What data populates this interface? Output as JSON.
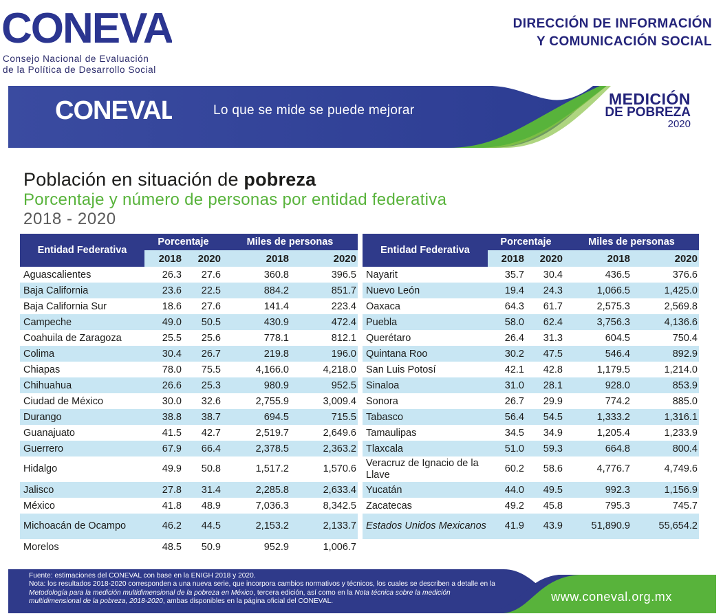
{
  "header": {
    "logo_text": "CONEVAL",
    "org_line1": "Consejo Nacional de Evaluación",
    "org_line2": "de la Política de Desarrollo Social",
    "dir_line1": "DIRECCIÓN DE INFORMACIÓN",
    "dir_line2": "Y COMUNICACIÓN SOCIAL"
  },
  "banner": {
    "logo_text": "CONEVAL",
    "slogan": "Lo que se mide se puede mejorar",
    "medicion_1": "MEDICIÓN",
    "medicion_2": "DE POBREZA",
    "medicion_3": "2020"
  },
  "titles": {
    "title_plain": "Población en situación de ",
    "title_bold": "pobreza",
    "subtitle": "Porcentaje y número de personas por entidad federativa",
    "years": "2018 - 2020"
  },
  "table_headers": {
    "entity": "Entidad Federativa",
    "percent": "Porcentaje",
    "thousands": "Miles de personas",
    "y2018": "2018",
    "y2020": "2020"
  },
  "left_rows": [
    {
      "name": "Aguascalientes",
      "p18": "26.3",
      "p20": "27.6",
      "m18": "360.8",
      "m20": "396.5"
    },
    {
      "name": "Baja California",
      "p18": "23.6",
      "p20": "22.5",
      "m18": "884.2",
      "m20": "851.7"
    },
    {
      "name": "Baja California Sur",
      "p18": "18.6",
      "p20": "27.6",
      "m18": "141.4",
      "m20": "223.4"
    },
    {
      "name": "Campeche",
      "p18": "49.0",
      "p20": "50.5",
      "m18": "430.9",
      "m20": "472.4"
    },
    {
      "name": "Coahuila de Zaragoza",
      "p18": "25.5",
      "p20": "25.6",
      "m18": "778.1",
      "m20": "812.1"
    },
    {
      "name": "Colima",
      "p18": "30.4",
      "p20": "26.7",
      "m18": "219.8",
      "m20": "196.0"
    },
    {
      "name": "Chiapas",
      "p18": "78.0",
      "p20": "75.5",
      "m18": "4,166.0",
      "m20": "4,218.0"
    },
    {
      "name": "Chihuahua",
      "p18": "26.6",
      "p20": "25.3",
      "m18": "980.9",
      "m20": "952.5"
    },
    {
      "name": "Ciudad de México",
      "p18": "30.0",
      "p20": "32.6",
      "m18": "2,755.9",
      "m20": "3,009.4"
    },
    {
      "name": "Durango",
      "p18": "38.8",
      "p20": "38.7",
      "m18": "694.5",
      "m20": "715.5"
    },
    {
      "name": "Guanajuato",
      "p18": "41.5",
      "p20": "42.7",
      "m18": "2,519.7",
      "m20": "2,649.6"
    },
    {
      "name": "Guerrero",
      "p18": "67.9",
      "p20": "66.4",
      "m18": "2,378.5",
      "m20": "2,363.2"
    },
    {
      "name": "Hidalgo",
      "p18": "49.9",
      "p20": "50.8",
      "m18": "1,517.2",
      "m20": "1,570.6",
      "tall": true
    },
    {
      "name": "Jalisco",
      "p18": "27.8",
      "p20": "31.4",
      "m18": "2,285.8",
      "m20": "2,633.4"
    },
    {
      "name": "México",
      "p18": "41.8",
      "p20": "48.9",
      "m18": "7,036.3",
      "m20": "8,342.5"
    },
    {
      "name": "Michoacán de Ocampo",
      "p18": "46.2",
      "p20": "44.5",
      "m18": "2,153.2",
      "m20": "2,133.7",
      "tall": true
    },
    {
      "name": "Morelos",
      "p18": "48.5",
      "p20": "50.9",
      "m18": "952.9",
      "m20": "1,006.7"
    }
  ],
  "right_rows": [
    {
      "name": "Nayarit",
      "p18": "35.7",
      "p20": "30.4",
      "m18": "436.5",
      "m20": "376.6"
    },
    {
      "name": "Nuevo León",
      "p18": "19.4",
      "p20": "24.3",
      "m18": "1,066.5",
      "m20": "1,425.0"
    },
    {
      "name": "Oaxaca",
      "p18": "64.3",
      "p20": "61.7",
      "m18": "2,575.3",
      "m20": "2,569.8"
    },
    {
      "name": "Puebla",
      "p18": "58.0",
      "p20": "62.4",
      "m18": "3,756.3",
      "m20": "4,136.6"
    },
    {
      "name": "Querétaro",
      "p18": "26.4",
      "p20": "31.3",
      "m18": "604.5",
      "m20": "750.4"
    },
    {
      "name": "Quintana Roo",
      "p18": "30.2",
      "p20": "47.5",
      "m18": "546.4",
      "m20": "892.9"
    },
    {
      "name": "San Luis Potosí",
      "p18": "42.1",
      "p20": "42.8",
      "m18": "1,179.5",
      "m20": "1,214.0"
    },
    {
      "name": "Sinaloa",
      "p18": "31.0",
      "p20": "28.1",
      "m18": "928.0",
      "m20": "853.9"
    },
    {
      "name": "Sonora",
      "p18": "26.7",
      "p20": "29.9",
      "m18": "774.2",
      "m20": "885.0"
    },
    {
      "name": "Tabasco",
      "p18": "56.4",
      "p20": "54.5",
      "m18": "1,333.2",
      "m20": "1,316.1"
    },
    {
      "name": "Tamaulipas",
      "p18": "34.5",
      "p20": "34.9",
      "m18": "1,205.4",
      "m20": "1,233.9"
    },
    {
      "name": "Tlaxcala",
      "p18": "51.0",
      "p20": "59.3",
      "m18": "664.8",
      "m20": "800.4"
    },
    {
      "name": "Veracruz de Ignacio de la Llave",
      "p18": "60.2",
      "p20": "58.6",
      "m18": "4,776.7",
      "m20": "4,749.6",
      "tall": true
    },
    {
      "name": "Yucatán",
      "p18": "44.0",
      "p20": "49.5",
      "m18": "992.3",
      "m20": "1,156.9"
    },
    {
      "name": "Zacatecas",
      "p18": "49.2",
      "p20": "45.8",
      "m18": "795.3",
      "m20": "745.7"
    },
    {
      "name": "Estados Unidos Mexicanos",
      "p18": "41.9",
      "p20": "43.9",
      "m18": "51,890.9",
      "m20": "55,654.2",
      "tall": true,
      "total": true,
      "span": 2
    }
  ],
  "footer": {
    "source": "Fuente: estimaciones del CONEVAL con base en la ENIGH 2018 y 2020.",
    "note_a": "Nota: los resultados 2018-2020 corresponden a una nueva serie, que incorpora cambios normativos y técnicos, los cuales se describen a detalle en la ",
    "note_b": "Metodología para la medición multidimensional de la pobreza en México",
    "note_c": ", tercera edición, así como en la ",
    "note_d": "Nota técnica sobre la medición multidimensional de la pobreza, 2018-2020",
    "note_e": ", ambas disponibles en la página oficial del CONEVAL.",
    "website": "www.coneval.org.mx"
  },
  "colors": {
    "navy": "#2f3a8a",
    "banner_blue": "#3a4ba0",
    "green": "#58b33b",
    "light_blue_row": "#c8e6f3"
  }
}
